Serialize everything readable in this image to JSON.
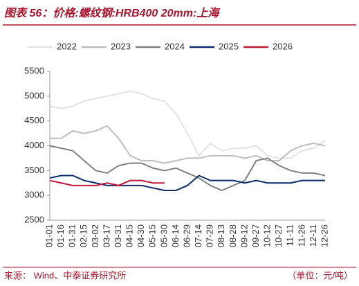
{
  "chart_data": {
    "type": "line",
    "title": "图表 56：价格:螺纹钢:HRB400 20mm:上海",
    "source": "来源：  Wind、中泰证券研究所",
    "unit": "（单位：元/吨）",
    "categories": [
      "01-01",
      "01-16",
      "01-31",
      "02-15",
      "03-02",
      "03-17",
      "03-31",
      "04-15",
      "04-30",
      "05-15",
      "05-30",
      "06-14",
      "06-29",
      "07-14",
      "07-29",
      "08-13",
      "08-28",
      "09-12",
      "09-27",
      "10-12",
      "10-27",
      "11-11",
      "11-26",
      "12-11",
      "12-26"
    ],
    "ylim": [
      2500,
      5500
    ],
    "yticks": [
      2500,
      3000,
      3500,
      4000,
      4500,
      5000,
      5500
    ],
    "series": [
      {
        "name": "2022",
        "color": "#e3e3e3",
        "values": [
          4800,
          4750,
          4800,
          4900,
          4950,
          5000,
          5050,
          5100,
          5050,
          4950,
          4900,
          4650,
          4250,
          3800,
          4050,
          3900,
          3950,
          3950,
          4000,
          3800,
          3750,
          3750,
          3900,
          3950,
          4100
        ]
      },
      {
        "name": "2023",
        "color": "#bdbdbd",
        "values": [
          4150,
          4150,
          4300,
          4250,
          4300,
          4400,
          4150,
          3800,
          3700,
          3700,
          3650,
          3700,
          3750,
          3750,
          3800,
          3800,
          3800,
          3750,
          3800,
          3700,
          3700,
          3900,
          4000,
          4050,
          4000
        ]
      },
      {
        "name": "2024",
        "color": "#808080",
        "values": [
          4000,
          3950,
          3900,
          3700,
          3500,
          3450,
          3600,
          3650,
          3650,
          3550,
          3500,
          3550,
          3450,
          3350,
          3200,
          3100,
          3200,
          3300,
          3700,
          3750,
          3600,
          3500,
          3450,
          3450,
          3400
        ]
      },
      {
        "name": "2025",
        "color": "#0d2a6b",
        "values": [
          3350,
          3400,
          3400,
          3300,
          3250,
          3200,
          3200,
          3200,
          3200,
          3150,
          3100,
          3100,
          3200,
          3400,
          3300,
          3300,
          3300,
          3250,
          3300,
          3250,
          3250,
          3250,
          3300,
          3300,
          3300
        ]
      },
      {
        "name": "2026",
        "color": "#c0183a",
        "values": [
          3300,
          3250,
          3200,
          3200,
          3200,
          3250,
          3200,
          3300,
          3300,
          3250,
          3250,
          null,
          null,
          null,
          null,
          null,
          null,
          null,
          null,
          null,
          null,
          null,
          null,
          null,
          null
        ]
      }
    ]
  }
}
